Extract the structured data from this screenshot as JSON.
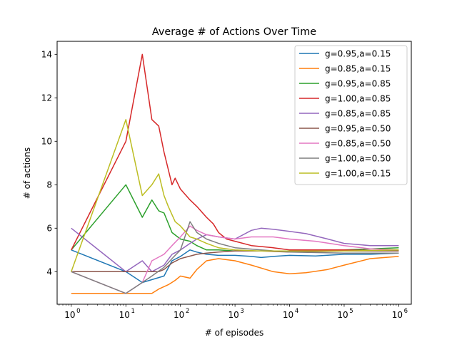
{
  "chart_data": {
    "type": "line",
    "title": "Average # of Actions Over Time",
    "xlabel": "# of episodes",
    "ylabel": "# of actions",
    "xscale": "log",
    "xlim": [
      0.55,
      1700000
    ],
    "ylim": [
      2.5,
      14.6
    ],
    "xticks": [
      {
        "value": 1,
        "base": "10",
        "exp": "0"
      },
      {
        "value": 10,
        "base": "10",
        "exp": "1"
      },
      {
        "value": 100,
        "base": "10",
        "exp": "2"
      },
      {
        "value": 1000,
        "base": "10",
        "exp": "3"
      },
      {
        "value": 10000,
        "base": "10",
        "exp": "4"
      },
      {
        "value": 100000,
        "base": "10",
        "exp": "5"
      },
      {
        "value": 1000000,
        "base": "10",
        "exp": "6"
      }
    ],
    "yticks": [
      4,
      6,
      8,
      10,
      12,
      14
    ],
    "grid": false,
    "legend_position": "top-right",
    "series": [
      {
        "name": "g=0.95,a=0.15",
        "color": "#1f77b4",
        "x": [
          1,
          10,
          20,
          50,
          70,
          100,
          150,
          200,
          300,
          500,
          1000,
          2000,
          3000,
          5000,
          10000,
          30000,
          100000,
          300000,
          1000000
        ],
        "y": [
          5,
          4,
          3.5,
          3.8,
          4.5,
          4.7,
          5.0,
          4.9,
          4.8,
          4.75,
          4.75,
          4.7,
          4.65,
          4.7,
          4.75,
          4.72,
          4.8,
          4.8,
          4.85
        ]
      },
      {
        "name": "g=0.85,a=0.15",
        "color": "#ff7f0e",
        "x": [
          1,
          10,
          20,
          30,
          40,
          60,
          80,
          100,
          150,
          200,
          300,
          500,
          1000,
          2000,
          5000,
          10000,
          20000,
          50000,
          100000,
          300000,
          1000000
        ],
        "y": [
          3,
          3,
          3,
          3,
          3.2,
          3.4,
          3.6,
          3.8,
          3.7,
          4.1,
          4.5,
          4.6,
          4.5,
          4.3,
          4.0,
          3.9,
          3.95,
          4.1,
          4.3,
          4.6,
          4.7
        ]
      },
      {
        "name": "g=0.95,a=0.85",
        "color": "#2ca02c",
        "x": [
          1,
          10,
          20,
          30,
          40,
          50,
          70,
          100,
          150,
          200,
          300,
          500,
          1000,
          3000,
          10000,
          100000,
          1000000
        ],
        "y": [
          5,
          8,
          6.5,
          7.3,
          6.8,
          6.7,
          5.8,
          5.5,
          5.4,
          5.2,
          5.0,
          5.0,
          4.95,
          4.95,
          4.95,
          5.0,
          5.1
        ]
      },
      {
        "name": "g=1.00,a=0.85",
        "color": "#d62728",
        "x": [
          1,
          10,
          20,
          30,
          40,
          50,
          70,
          80,
          100,
          150,
          200,
          300,
          400,
          500,
          700,
          1000,
          2000,
          5000,
          10000,
          100000,
          1000000
        ],
        "y": [
          5,
          10,
          14,
          11,
          10.7,
          9.5,
          8,
          8.3,
          7.8,
          7.3,
          7.0,
          6.5,
          6.2,
          5.8,
          5.5,
          5.4,
          5.2,
          5.1,
          5.0,
          5.0,
          4.95
        ]
      },
      {
        "name": "g=0.85,a=0.85",
        "color": "#9467bd",
        "x": [
          1,
          10,
          20,
          30,
          50,
          70,
          100,
          150,
          200,
          300,
          500,
          1000,
          2000,
          3000,
          5000,
          10000,
          20000,
          50000,
          100000,
          300000,
          1000000
        ],
        "y": [
          6,
          4,
          4.5,
          4.0,
          4.3,
          4.8,
          5.0,
          5.3,
          5.5,
          5.7,
          5.6,
          5.5,
          5.9,
          6.0,
          5.95,
          5.85,
          5.75,
          5.5,
          5.3,
          5.2,
          5.2
        ]
      },
      {
        "name": "g=0.95,a=0.50",
        "color": "#8c564b",
        "x": [
          1,
          10,
          30,
          40,
          50,
          70,
          100,
          200,
          300,
          500,
          1000,
          3000,
          10000,
          100000,
          1000000
        ],
        "y": [
          4,
          4,
          4,
          4,
          4.1,
          4.4,
          4.6,
          4.8,
          4.85,
          4.9,
          4.95,
          4.95,
          4.9,
          4.95,
          4.95
        ]
      },
      {
        "name": "g=0.85,a=0.50",
        "color": "#e377c2",
        "x": [
          1,
          10,
          20,
          30,
          50,
          70,
          100,
          150,
          200,
          300,
          500,
          1000,
          2000,
          5000,
          10000,
          30000,
          100000,
          300000,
          1000000
        ],
        "y": [
          4,
          3.0,
          3.5,
          4.5,
          4.8,
          5.2,
          5.6,
          6.1,
          5.9,
          5.7,
          5.6,
          5.5,
          5.6,
          5.6,
          5.5,
          5.4,
          5.2,
          5.05,
          5.0
        ]
      },
      {
        "name": "g=1.00,a=0.50",
        "color": "#7f7f7f",
        "x": [
          1,
          10,
          20,
          30,
          50,
          70,
          100,
          150,
          200,
          300,
          500,
          1000,
          3000,
          10000,
          100000,
          1000000
        ],
        "y": [
          4,
          3,
          3.5,
          3.8,
          4.2,
          4.6,
          5.0,
          6.3,
          5.8,
          5.5,
          5.3,
          5.1,
          5.0,
          4.9,
          4.85,
          4.85
        ]
      },
      {
        "name": "g=1.00,a=0.15",
        "color": "#bcbd22",
        "x": [
          1,
          10,
          20,
          30,
          40,
          50,
          60,
          80,
          100,
          150,
          200,
          300,
          500,
          1000,
          3000,
          10000,
          100000,
          1000000
        ],
        "y": [
          4,
          11,
          7.5,
          8.0,
          8.5,
          7.5,
          7.0,
          6.3,
          6.1,
          5.6,
          5.5,
          5.3,
          5.1,
          5.0,
          4.95,
          4.95,
          4.95,
          5.0
        ]
      }
    ]
  }
}
